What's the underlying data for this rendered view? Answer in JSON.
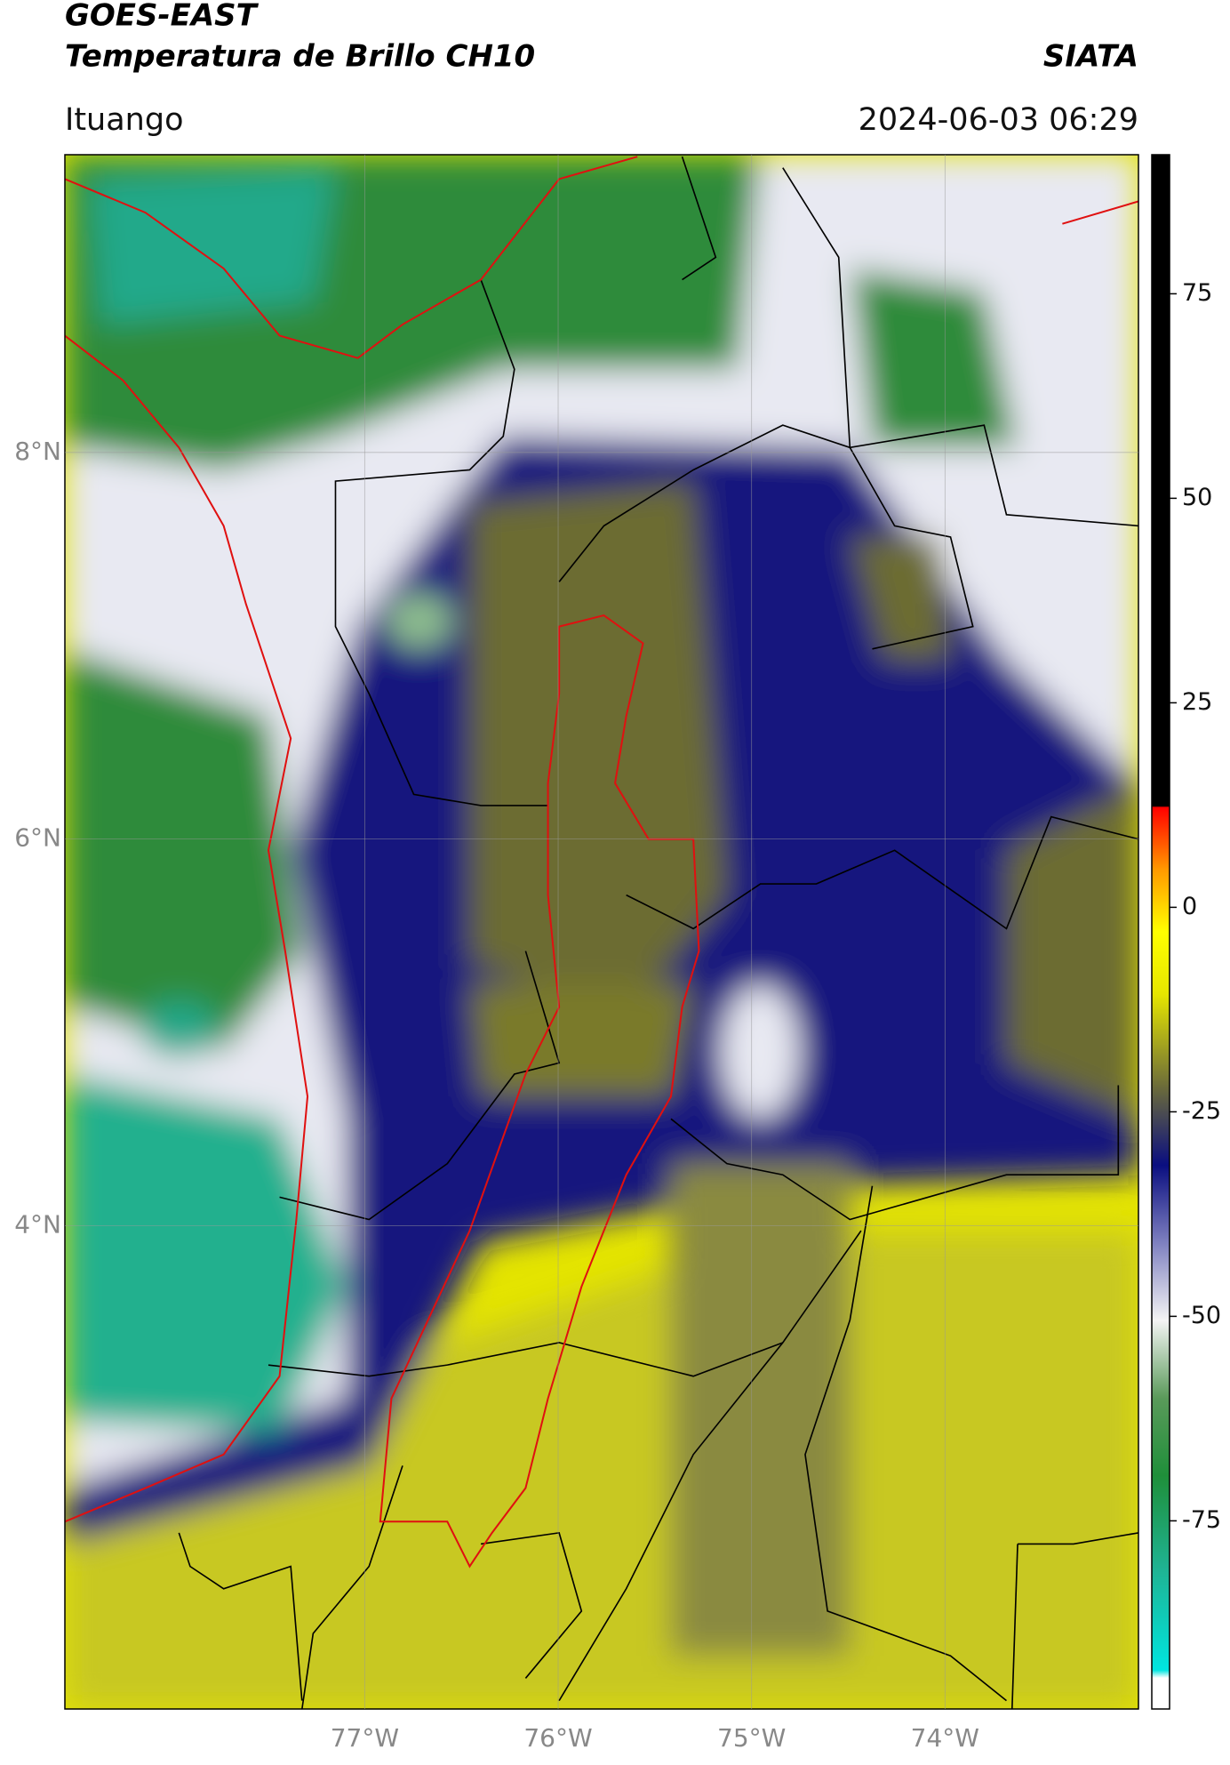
{
  "header": {
    "title": "GOES-EAST",
    "subtitle": "Temperatura de Brillo CH10",
    "source": "SIATA",
    "location": "Ituango",
    "datetime": "2024-06-03 06:29"
  },
  "map": {
    "xlim": [
      -78.55,
      -73.0
    ],
    "ylim": [
      1.5,
      9.54
    ],
    "xticks": [
      {
        "value": -77,
        "label": "77°W"
      },
      {
        "value": -76,
        "label": "76°W"
      },
      {
        "value": -75,
        "label": "75°W"
      },
      {
        "value": -74,
        "label": "74°W"
      }
    ],
    "yticks": [
      {
        "value": 4,
        "label": "4°N"
      },
      {
        "value": 6,
        "label": "6°N"
      },
      {
        "value": 8,
        "label": "8°N"
      }
    ],
    "grid": true
  },
  "colorbar": {
    "lim": [
      -98,
      92
    ],
    "ticks": [
      -75,
      -50,
      -25,
      0,
      25,
      50,
      75
    ]
  }
}
